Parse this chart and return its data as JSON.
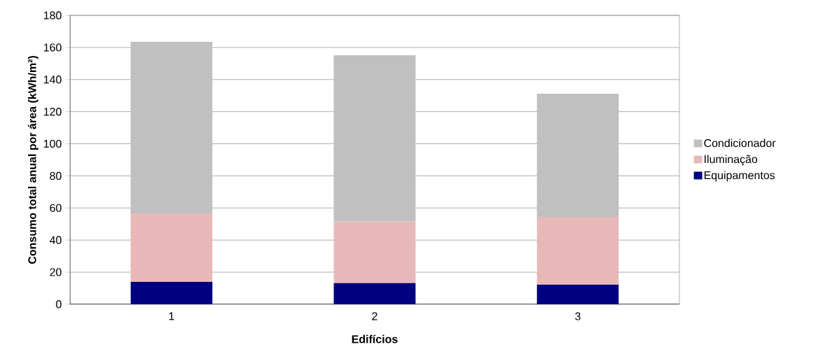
{
  "chart_data": {
    "type": "bar",
    "stacked": true,
    "xlabel": "Edifícios",
    "ylabel": "Consumo total anual por área (kWh/m²)",
    "categories": [
      "1",
      "2",
      "3"
    ],
    "series": [
      {
        "name": "Equipamentos",
        "color": "#000080",
        "values": [
          14.0,
          13.2,
          12.2
        ]
      },
      {
        "name": "Iluminação",
        "color": "#e8b8b8",
        "values": [
          42.7,
          38.4,
          42.3
        ]
      },
      {
        "name": "Condicionador",
        "color": "#c0c0c0",
        "values": [
          106.8,
          103.6,
          76.7
        ]
      }
    ],
    "ylim": [
      0,
      180
    ],
    "yticks": [
      0,
      20,
      40,
      60,
      80,
      100,
      120,
      140,
      160,
      180
    ],
    "grid": "y",
    "legend": "right"
  }
}
